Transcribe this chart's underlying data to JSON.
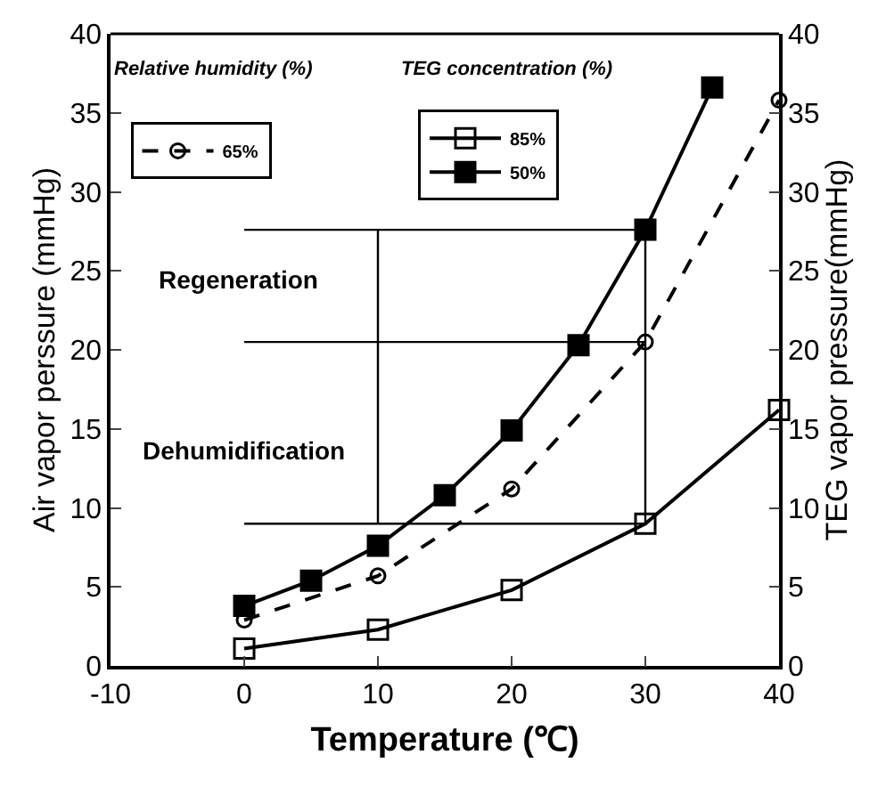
{
  "chart_data": {
    "type": "line",
    "xlabel": "Temperature (℃)",
    "ylabel": "Air vapor perssure (mmHg)",
    "y2label": "TEG vapor pressure(mmHg)",
    "xlim": [
      -10,
      40
    ],
    "xticks": [
      -10,
      0,
      10,
      20,
      30,
      40
    ],
    "ylim": [
      0,
      40
    ],
    "yticks": [
      0,
      5,
      10,
      15,
      20,
      25,
      30,
      35,
      40
    ],
    "y2lim": [
      0,
      40
    ],
    "y2ticks": [
      0,
      5,
      10,
      15,
      20,
      25,
      30,
      35,
      40
    ],
    "legend": "top left",
    "annotations": [
      "Relative humidity (%)",
      "TEG concentration (%)",
      "Regeneration",
      "Dehumidification"
    ],
    "series": [
      {
        "name": "65%",
        "color": "#000000",
        "x": [
          0,
          10,
          20,
          30,
          40
        ],
        "values": [
          2.9,
          5.7,
          11.2,
          20.5,
          35.8
        ],
        "marker": "circle",
        "line_style": "dashed"
      },
      {
        "name": "85%",
        "color": "#000000",
        "x": [
          0,
          10,
          20,
          30,
          40
        ],
        "values": [
          1.1,
          2.3,
          4.8,
          9.0,
          16.2
        ],
        "marker": "square",
        "line_style": "solid",
        "axis": "y2"
      },
      {
        "name": "50%",
        "color": "#000000",
        "x": [
          0,
          5,
          10,
          15,
          20,
          25,
          30,
          35
        ],
        "values": [
          3.8,
          5.4,
          7.6,
          10.8,
          14.9,
          20.3,
          27.6,
          36.6
        ],
        "marker": "square",
        "line_style": "solid",
        "axis": "y2"
      },
      {
        "color": "#000000",
        "x": [
          0,
          30,
          30,
          0
        ],
        "values": [
          27.6,
          27.6,
          9.0,
          9.0
        ],
        "marker": "none",
        "line_style": "solid"
      },
      {
        "color": "#000000",
        "x": [
          0,
          30
        ],
        "values": [
          20.5,
          20.5
        ],
        "marker": "none",
        "line_style": "solid"
      },
      {
        "color": "#000000",
        "x": [
          10,
          10
        ],
        "values": [
          9.0,
          27.6
        ],
        "marker": "none",
        "line_style": "solid"
      }
    ]
  }
}
